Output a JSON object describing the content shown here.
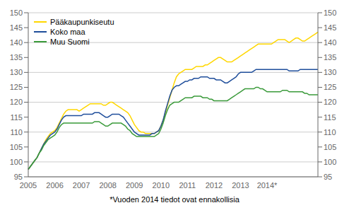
{
  "chart_data": {
    "type": "line",
    "annotations": [
      "*Vuoden 2014 tiedot ovat ennakollisia"
    ],
    "categories": [
      "2005",
      null,
      null,
      null,
      null,
      null,
      null,
      null,
      null,
      null,
      null,
      null,
      "2006",
      null,
      null,
      null,
      null,
      null,
      null,
      null,
      null,
      null,
      null,
      null,
      "2007",
      null,
      null,
      null,
      null,
      null,
      null,
      null,
      null,
      null,
      null,
      null,
      "2008",
      null,
      null,
      null,
      null,
      null,
      null,
      null,
      null,
      null,
      null,
      null,
      "2009",
      null,
      null,
      null,
      null,
      null,
      null,
      null,
      null,
      null,
      null,
      null,
      "2010",
      null,
      null,
      null,
      null,
      null,
      null,
      null,
      null,
      null,
      null,
      null,
      "2011",
      null,
      null,
      null,
      null,
      null,
      null,
      null,
      null,
      null,
      null,
      null,
      "2012",
      null,
      null,
      null,
      null,
      null,
      null,
      null,
      null,
      null,
      null,
      null,
      "2013",
      null,
      null,
      null,
      null,
      null,
      null,
      null,
      null,
      null,
      null,
      null,
      "2014*",
      null,
      null,
      null,
      null,
      null,
      null,
      null,
      null,
      null,
      null,
      null,
      null,
      null,
      null,
      null,
      null,
      null,
      null,
      null,
      null,
      null,
      null,
      null
    ],
    "ylim": [
      95,
      150
    ],
    "yticks": [
      95,
      100,
      105,
      110,
      115,
      120,
      125,
      130,
      135,
      140,
      145,
      150
    ],
    "y2lim": [
      95,
      150
    ],
    "y2ticks": [
      95,
      100,
      105,
      110,
      115,
      120,
      125,
      130,
      135,
      140,
      145,
      150
    ],
    "grid": "y",
    "legend": "upper left",
    "series": [
      {
        "name": "Pääkaupunkiseutu",
        "color": "#FFD700",
        "values": [
          97.5,
          98.5,
          99.5,
          100.5,
          101.5,
          103.0,
          104.5,
          106.0,
          107.5,
          108.5,
          109.5,
          110.0,
          110.5,
          111.5,
          113.0,
          114.5,
          116.0,
          117.0,
          117.5,
          117.5,
          117.5,
          117.5,
          117.5,
          117.0,
          117.5,
          118.0,
          118.5,
          119.0,
          119.5,
          119.5,
          119.5,
          119.5,
          119.5,
          119.5,
          119.0,
          119.0,
          119.5,
          120.0,
          120.0,
          119.5,
          119.0,
          118.5,
          118.0,
          117.5,
          117.0,
          116.5,
          115.5,
          114.0,
          112.5,
          111.5,
          110.5,
          110.0,
          110.0,
          109.5,
          109.5,
          109.5,
          109.5,
          109.5,
          110.0,
          110.5,
          112.0,
          114.0,
          116.5,
          119.0,
          121.5,
          124.0,
          126.5,
          128.5,
          129.5,
          130.0,
          130.5,
          131.0,
          131.0,
          131.0,
          131.0,
          131.5,
          132.0,
          132.0,
          132.0,
          132.0,
          132.5,
          132.5,
          133.0,
          133.5,
          134.0,
          134.5,
          135.0,
          135.0,
          134.5,
          134.0,
          133.5,
          133.5,
          133.5,
          134.0,
          134.5,
          135.0,
          135.5,
          136.0,
          136.5,
          137.0,
          137.5,
          138.0,
          138.5,
          139.0,
          139.5,
          139.5,
          139.5,
          139.5,
          139.5,
          139.5,
          139.5,
          140.0,
          140.5,
          141.0,
          141.0,
          141.0,
          141.0,
          140.5,
          140.0,
          140.5,
          141.0,
          141.5,
          141.5,
          141.0,
          140.5,
          140.5,
          141.0,
          141.5,
          142.0,
          142.5,
          143.0,
          143.5
        ]
      },
      {
        "name": "Koko maa",
        "color": "#1F4E9B",
        "values": [
          97.5,
          98.5,
          99.5,
          100.5,
          101.5,
          103.0,
          104.5,
          106.0,
          107.0,
          108.0,
          109.0,
          109.5,
          110.0,
          111.0,
          112.5,
          114.0,
          115.0,
          115.5,
          115.5,
          115.5,
          115.5,
          115.5,
          115.5,
          115.5,
          115.5,
          116.0,
          116.0,
          116.0,
          116.0,
          116.0,
          116.5,
          116.5,
          116.5,
          116.0,
          115.5,
          115.0,
          115.0,
          115.5,
          116.0,
          116.0,
          116.0,
          116.0,
          115.5,
          115.0,
          114.0,
          113.0,
          112.0,
          111.0,
          110.0,
          109.5,
          109.0,
          109.0,
          109.0,
          109.0,
          109.0,
          109.0,
          109.5,
          109.5,
          110.0,
          110.5,
          112.0,
          114.0,
          117.0,
          119.5,
          122.0,
          124.0,
          125.0,
          125.5,
          125.5,
          126.0,
          126.5,
          127.0,
          127.0,
          127.5,
          127.5,
          128.0,
          128.0,
          128.0,
          128.5,
          128.5,
          128.5,
          128.5,
          128.0,
          128.0,
          128.0,
          127.5,
          127.5,
          127.5,
          127.0,
          126.5,
          126.5,
          127.0,
          127.5,
          128.0,
          128.5,
          129.5,
          130.0,
          130.0,
          130.0,
          130.0,
          130.0,
          130.0,
          130.5,
          131.0,
          131.0,
          131.0,
          131.0,
          131.0,
          131.0,
          131.0,
          131.0,
          131.0,
          131.0,
          131.0,
          131.0,
          131.0,
          131.0,
          131.0,
          130.5,
          130.5,
          130.5,
          130.5,
          130.5,
          131.0,
          131.0,
          131.0,
          131.0,
          131.0,
          131.0,
          131.0,
          131.0,
          131.0
        ]
      },
      {
        "name": "Muu Suomi",
        "color": "#3A9A3A",
        "values": [
          97.5,
          98.5,
          99.5,
          100.5,
          101.5,
          103.0,
          104.0,
          105.5,
          106.5,
          107.5,
          108.0,
          108.5,
          109.0,
          110.0,
          111.5,
          112.5,
          113.0,
          113.0,
          113.0,
          113.0,
          113.0,
          113.0,
          113.0,
          113.0,
          113.0,
          113.0,
          113.0,
          113.0,
          113.0,
          113.0,
          113.5,
          113.5,
          113.5,
          113.0,
          112.5,
          112.0,
          112.0,
          112.5,
          113.0,
          113.0,
          113.0,
          113.0,
          113.0,
          112.5,
          112.0,
          111.0,
          110.5,
          109.5,
          109.0,
          108.5,
          108.5,
          108.5,
          108.5,
          108.5,
          108.5,
          108.5,
          108.5,
          108.5,
          109.0,
          109.5,
          111.0,
          113.0,
          115.5,
          117.5,
          119.0,
          119.5,
          120.0,
          120.0,
          120.0,
          120.5,
          121.0,
          121.5,
          121.5,
          121.5,
          121.5,
          122.0,
          122.0,
          122.0,
          122.0,
          121.5,
          121.5,
          121.5,
          121.0,
          121.0,
          120.5,
          120.5,
          120.5,
          120.5,
          120.5,
          120.5,
          120.5,
          121.0,
          121.5,
          122.0,
          122.5,
          123.0,
          123.5,
          124.0,
          124.5,
          124.5,
          124.5,
          124.5,
          124.5,
          125.0,
          125.0,
          124.5,
          124.5,
          124.0,
          123.5,
          123.5,
          123.5,
          123.5,
          123.5,
          123.5,
          123.5,
          124.0,
          124.0,
          124.0,
          123.5,
          123.5,
          123.5,
          123.5,
          123.5,
          123.5,
          123.5,
          123.0,
          123.0,
          122.5,
          122.5,
          122.5,
          122.5,
          122.5
        ]
      }
    ]
  }
}
